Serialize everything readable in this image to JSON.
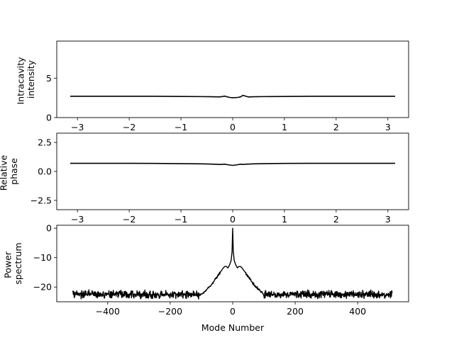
{
  "chart_data": [
    {
      "type": "line",
      "title": "",
      "ylabel": [
        "Intracavity",
        "intensity"
      ],
      "xlabel": "",
      "xlim": [
        -3.4,
        3.4
      ],
      "ylim": [
        0,
        9.7
      ],
      "xticks": [
        -3,
        -2,
        -1,
        0,
        1,
        2,
        3
      ],
      "xtick_labels": [
        "−3",
        "−2",
        "−1",
        "0",
        "1",
        "2",
        "3"
      ],
      "yticks": [
        0,
        5
      ],
      "ytick_labels": [
        "0",
        "5"
      ],
      "grid": false,
      "line_color": "#000000",
      "series": [
        {
          "x": [
            -3.14,
            -2.5,
            -2.0,
            -1.5,
            -1.0,
            -0.6,
            -0.4,
            -0.25,
            -0.15,
            -0.1,
            -0.05,
            0.0,
            0.05,
            0.1,
            0.15,
            0.2,
            0.25,
            0.3,
            0.35,
            0.4,
            0.6,
            1.0,
            1.5,
            2.0,
            2.5,
            3.14
          ],
          "y": [
            2.7,
            2.7,
            2.7,
            2.7,
            2.68,
            2.66,
            2.64,
            2.62,
            2.72,
            2.62,
            2.55,
            2.52,
            2.53,
            2.56,
            2.62,
            2.82,
            2.72,
            2.62,
            2.62,
            2.64,
            2.66,
            2.68,
            2.7,
            2.7,
            2.7,
            2.7
          ]
        }
      ]
    },
    {
      "type": "line",
      "title": "",
      "ylabel": [
        "Relative",
        "phase"
      ],
      "xlabel": "",
      "xlim": [
        -3.4,
        3.4
      ],
      "ylim": [
        -3.3,
        3.3
      ],
      "xticks": [
        -3,
        -2,
        -1,
        0,
        1,
        2,
        3
      ],
      "xtick_labels": [
        "−3",
        "−2",
        "−1",
        "0",
        "1",
        "2",
        "3"
      ],
      "yticks": [
        -2.5,
        0.0,
        2.5
      ],
      "ytick_labels": [
        "−2.5",
        "0.0",
        "2.5"
      ],
      "grid": false,
      "line_color": "#000000",
      "series": [
        {
          "x": [
            -3.14,
            -2.5,
            -2.0,
            -1.5,
            -1.0,
            -0.6,
            -0.4,
            -0.25,
            -0.15,
            -0.1,
            -0.05,
            0.0,
            0.05,
            0.1,
            0.15,
            0.2,
            0.25,
            0.3,
            0.4,
            0.6,
            1.0,
            1.5,
            2.0,
            2.5,
            3.14
          ],
          "y": [
            0.7,
            0.7,
            0.7,
            0.69,
            0.67,
            0.65,
            0.63,
            0.6,
            0.62,
            0.58,
            0.55,
            0.52,
            0.55,
            0.58,
            0.62,
            0.6,
            0.62,
            0.63,
            0.65,
            0.67,
            0.69,
            0.7,
            0.7,
            0.7,
            0.7
          ]
        }
      ]
    },
    {
      "type": "line",
      "title": "",
      "ylabel": [
        "Power",
        "spectrum"
      ],
      "xlabel": "Mode Number",
      "xlim": [
        -563,
        563
      ],
      "ylim": [
        -25,
        1
      ],
      "xticks": [
        -400,
        -200,
        0,
        200,
        400
      ],
      "xtick_labels": [
        "−400",
        "−200",
        "0",
        "200",
        "400"
      ],
      "yticks": [
        -20,
        -10,
        0
      ],
      "ytick_labels": [
        "−20",
        "−10",
        "0"
      ],
      "grid": false,
      "line_color": "#000000",
      "series": [
        {
          "x_range": [
            -512,
            511
          ],
          "noise_floor": -22.5,
          "noise_amplitude": 1.6,
          "envelope": {
            "x": [
              0,
              2,
              5,
              10,
              15,
              20,
              25,
              30,
              40,
              50,
              60,
              70,
              80,
              90,
              100
            ],
            "y": [
              0,
              -8,
              -11,
              -12.5,
              -13.5,
              -13,
              -13,
              -13.5,
              -15,
              -16.5,
              -18,
              -19.5,
              -20.5,
              -21.5,
              -22.5
            ]
          }
        }
      ]
    }
  ]
}
